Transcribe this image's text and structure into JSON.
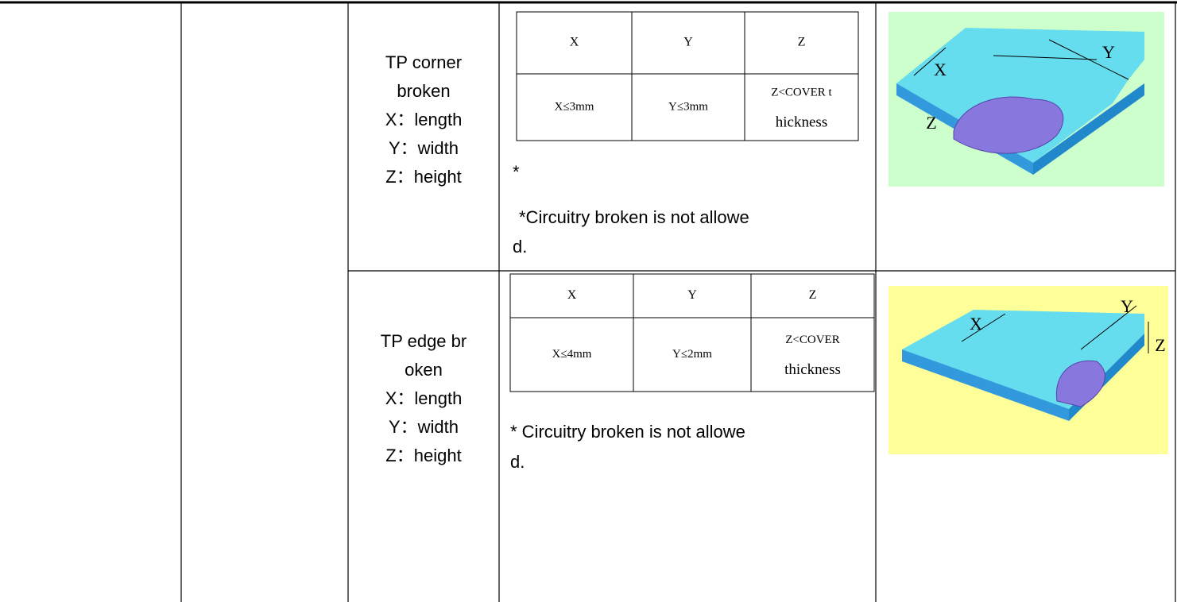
{
  "rows": [
    {
      "defect": [
        "TP corner",
        "broken",
        "X：length",
        "Y：width",
        "Z：height"
      ],
      "spec": {
        "header": [
          "X",
          "Y",
          "Z"
        ],
        "values": [
          [
            "X≤3mm"
          ],
          [
            "Y≤3mm"
          ],
          [
            "Z<COVER t",
            "hickness"
          ]
        ]
      },
      "notes": [
        "*",
        "*Circuitry broken is not allowe",
        "d."
      ],
      "figure_labels": [
        "X",
        "Y",
        "Z"
      ]
    },
    {
      "defect": [
        "TP edge br",
        "oken",
        "X：length",
        "Y：width",
        "Z：height"
      ],
      "spec": {
        "header": [
          "X",
          "Y",
          "Z"
        ],
        "values": [
          [
            "X≤4mm"
          ],
          [
            "Y≤2mm"
          ],
          [
            "Z<COVER",
            "thickness"
          ]
        ]
      },
      "notes": [
        "* Circuitry broken is not allowe",
        "d."
      ],
      "figure_labels": [
        "X",
        "Y",
        "Z"
      ]
    }
  ]
}
